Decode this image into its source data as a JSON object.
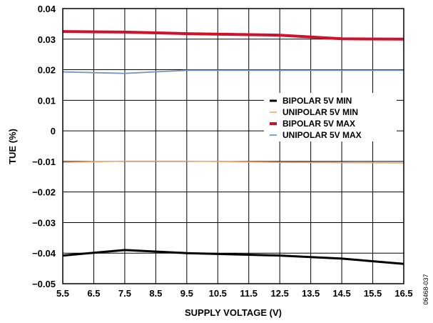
{
  "figure_id": "06468-037",
  "chart_data": {
    "type": "line",
    "xlabel": "SUPPLY VOLTAGE (V)",
    "ylabel": "TUE (%)",
    "xlim": [
      5.5,
      16.5
    ],
    "ylim": [
      -0.05,
      0.04
    ],
    "x": [
      5.5,
      7.5,
      9.5,
      12.5,
      14.5,
      16.5
    ],
    "x_ticks": [
      "5.5",
      "6.5",
      "7.5",
      "8.5",
      "9.5",
      "10.5",
      "11.5",
      "12.5",
      "13.5",
      "14.5",
      "15.5",
      "16.5"
    ],
    "y_ticks": [
      "0.04",
      "0.03",
      "0.02",
      "0.01",
      "0",
      "−0.01",
      "−0.02",
      "−0.03",
      "−0.04",
      "−0.05"
    ],
    "grid": true,
    "legend_position": "right",
    "series": [
      {
        "name": "BIPOLAR 5V MIN",
        "color": "#000000",
        "values": [
          -0.0408,
          -0.039,
          -0.04,
          -0.0408,
          -0.0418,
          -0.0435
        ]
      },
      {
        "name": "UNIPOLAR 5V MIN",
        "color": "#f4a46a",
        "values": [
          -0.0103,
          -0.0099,
          -0.0099,
          -0.0103,
          -0.0104,
          -0.0105
        ]
      },
      {
        "name": "BIPOLAR 5V MAX",
        "color": "#d0112b",
        "values": [
          0.0325,
          0.0323,
          0.0318,
          0.0313,
          0.0301,
          0.03
        ]
      },
      {
        "name": "UNIPOLAR 5V MAX",
        "color": "#7a96b8",
        "values": [
          0.0193,
          0.0188,
          0.0198,
          0.0198,
          0.0198,
          0.0198
        ]
      }
    ]
  }
}
